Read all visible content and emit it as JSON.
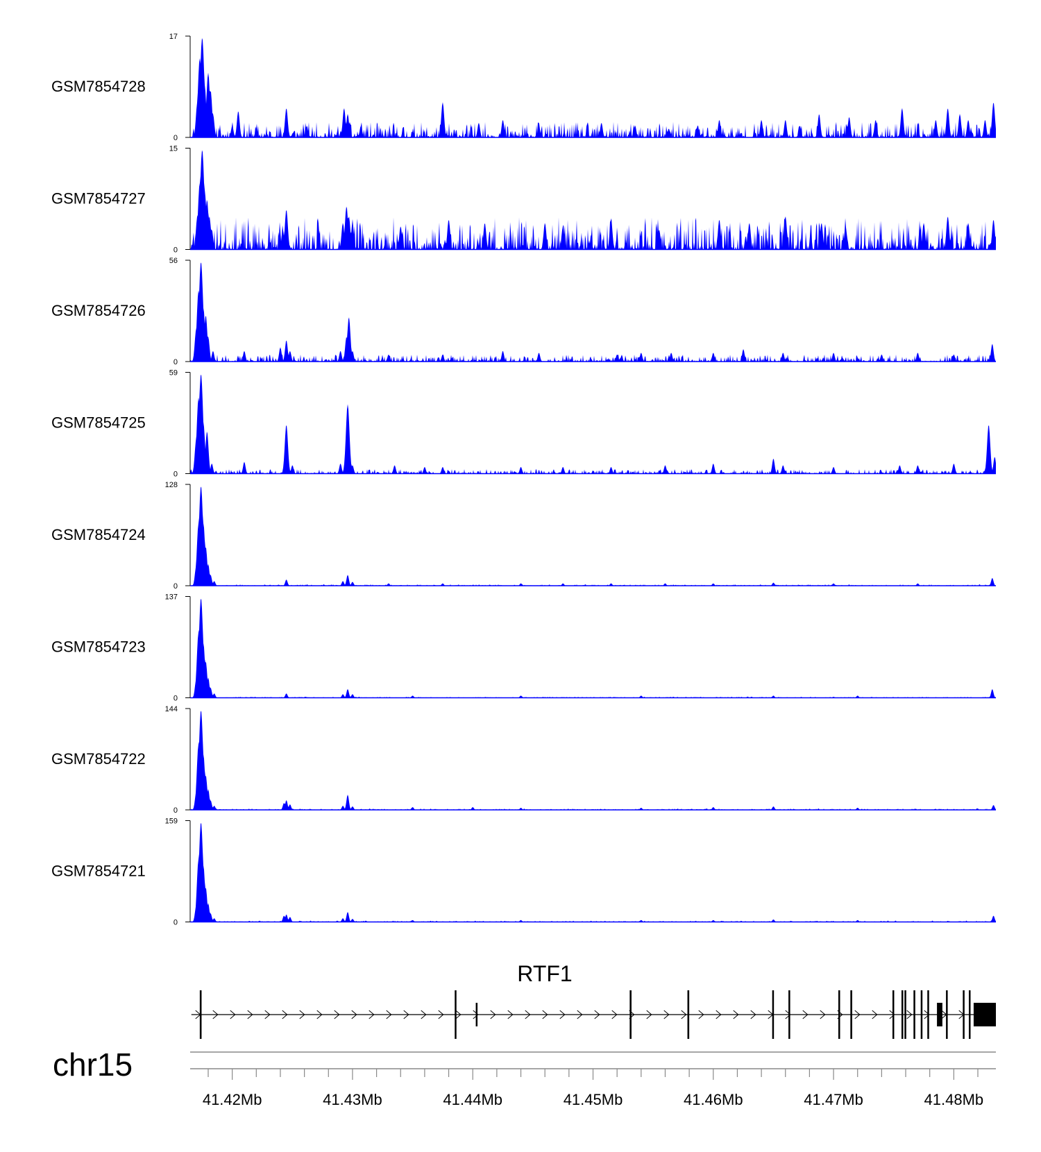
{
  "chart_data": {
    "type": "area",
    "title": "",
    "chromosome": "chr15",
    "xlim": [
      41.4165,
      41.4835
    ],
    "x_unit": "Mb",
    "x_ticks": [
      {
        "value": 41.42,
        "label": "41.42Mb"
      },
      {
        "value": 41.43,
        "label": "41.43Mb"
      },
      {
        "value": 41.44,
        "label": "41.44Mb"
      },
      {
        "value": 41.45,
        "label": "41.45Mb"
      },
      {
        "value": 41.46,
        "label": "41.46Mb"
      },
      {
        "value": 41.47,
        "label": "41.47Mb"
      },
      {
        "value": 41.48,
        "label": "41.48Mb"
      }
    ],
    "fill_color": "#0000ff",
    "series": [
      {
        "name": "GSM7854728",
        "ymin": 0,
        "ymax": 17,
        "ymin_label": "0",
        "ymax_label": "17",
        "peaks": [
          [
            41.4171,
            6
          ],
          [
            41.4173,
            13.5
          ],
          [
            41.4175,
            17
          ],
          [
            41.4177,
            9
          ],
          [
            41.4179,
            5.5
          ],
          [
            41.418,
            11
          ],
          [
            41.4182,
            8
          ],
          [
            41.4184,
            4
          ],
          [
            41.42,
            2
          ],
          [
            41.4205,
            4.5
          ],
          [
            41.422,
            1.5
          ],
          [
            41.4245,
            5
          ],
          [
            41.4262,
            2
          ],
          [
            41.4293,
            5
          ],
          [
            41.4296,
            4
          ],
          [
            41.4307,
            2
          ],
          [
            41.4375,
            6
          ],
          [
            41.4405,
            2.5
          ],
          [
            41.4425,
            3
          ],
          [
            41.4455,
            2
          ],
          [
            41.4507,
            2.5
          ],
          [
            41.4535,
            2
          ],
          [
            41.4563,
            1.5
          ],
          [
            41.4587,
            2
          ],
          [
            41.4605,
            3
          ],
          [
            41.464,
            3
          ],
          [
            41.466,
            3
          ],
          [
            41.4672,
            2
          ],
          [
            41.4688,
            4
          ],
          [
            41.4713,
            3.5
          ],
          [
            41.4735,
            3
          ],
          [
            41.4757,
            5
          ],
          [
            41.4785,
            3
          ],
          [
            41.4795,
            5
          ],
          [
            41.4805,
            4
          ],
          [
            41.4812,
            3
          ],
          [
            41.4826,
            3
          ],
          [
            41.4833,
            6
          ]
        ],
        "noise": 1.2,
        "seed": 11
      },
      {
        "name": "GSM7854727",
        "ymin": 0,
        "ymax": 15,
        "ymin_label": "0",
        "ymax_label": "15",
        "peaks": [
          [
            41.4171,
            5
          ],
          [
            41.4173,
            10
          ],
          [
            41.4175,
            15
          ],
          [
            41.4177,
            9
          ],
          [
            41.4179,
            7.5
          ],
          [
            41.4181,
            5
          ],
          [
            41.4183,
            3
          ],
          [
            41.4245,
            6
          ],
          [
            41.4242,
            3
          ],
          [
            41.4292,
            4
          ],
          [
            41.4295,
            6.5
          ],
          [
            41.4297,
            5
          ],
          [
            41.43,
            4
          ],
          [
            41.434,
            3.5
          ],
          [
            41.438,
            4.5
          ],
          [
            41.441,
            4
          ],
          [
            41.446,
            4
          ],
          [
            41.4475,
            3.5
          ],
          [
            41.4515,
            4.5
          ],
          [
            41.4555,
            3
          ],
          [
            41.4605,
            4.5
          ],
          [
            41.463,
            4
          ],
          [
            41.466,
            5
          ],
          [
            41.469,
            4
          ],
          [
            41.471,
            3.5
          ],
          [
            41.4775,
            4
          ],
          [
            41.4795,
            5
          ],
          [
            41.4812,
            4
          ],
          [
            41.4833,
            4.5
          ]
        ],
        "noise": 2.2,
        "seed": 23
      },
      {
        "name": "GSM7854726",
        "ymin": 0,
        "ymax": 56,
        "ymin_label": "0",
        "ymax_label": "56",
        "peaks": [
          [
            41.417,
            18
          ],
          [
            41.4172,
            40
          ],
          [
            41.4174,
            56
          ],
          [
            41.4176,
            30
          ],
          [
            41.4178,
            26
          ],
          [
            41.418,
            14
          ],
          [
            41.4184,
            6
          ],
          [
            41.421,
            6
          ],
          [
            41.424,
            8
          ],
          [
            41.4245,
            12
          ],
          [
            41.4248,
            6
          ],
          [
            41.429,
            6
          ],
          [
            41.4295,
            14
          ],
          [
            41.4297,
            25
          ],
          [
            41.43,
            6
          ],
          [
            41.433,
            4
          ],
          [
            41.4375,
            4
          ],
          [
            41.4425,
            6
          ],
          [
            41.4455,
            5
          ],
          [
            41.452,
            4
          ],
          [
            41.454,
            5
          ],
          [
            41.4565,
            5
          ],
          [
            41.46,
            5
          ],
          [
            41.4625,
            7
          ],
          [
            41.4658,
            5
          ],
          [
            41.47,
            5
          ],
          [
            41.474,
            4
          ],
          [
            41.477,
            5
          ],
          [
            41.48,
            4
          ],
          [
            41.4832,
            10
          ]
        ],
        "noise": 1.8,
        "seed": 37
      },
      {
        "name": "GSM7854725",
        "ymin": 0,
        "ymax": 59,
        "ymin_label": "0",
        "ymax_label": "59",
        "peaks": [
          [
            41.417,
            20
          ],
          [
            41.4172,
            45
          ],
          [
            41.4174,
            59
          ],
          [
            41.4176,
            30
          ],
          [
            41.4179,
            25
          ],
          [
            41.4183,
            6
          ],
          [
            41.421,
            7
          ],
          [
            41.4245,
            29
          ],
          [
            41.425,
            5
          ],
          [
            41.429,
            6
          ],
          [
            41.4296,
            41
          ],
          [
            41.43,
            5
          ],
          [
            41.4335,
            5
          ],
          [
            41.436,
            4
          ],
          [
            41.4375,
            4
          ],
          [
            41.444,
            4
          ],
          [
            41.4475,
            4
          ],
          [
            41.4515,
            4
          ],
          [
            41.456,
            5
          ],
          [
            41.46,
            6
          ],
          [
            41.465,
            9
          ],
          [
            41.4658,
            5
          ],
          [
            41.47,
            4
          ],
          [
            41.4755,
            5
          ],
          [
            41.477,
            5
          ],
          [
            41.48,
            6
          ],
          [
            41.4829,
            29
          ],
          [
            41.4834,
            10
          ]
        ],
        "noise": 1.2,
        "seed": 41
      },
      {
        "name": "GSM7854724",
        "ymin": 0,
        "ymax": 128,
        "ymin_label": "0",
        "ymax_label": "128",
        "peaks": [
          [
            41.417,
            25
          ],
          [
            41.4172,
            80
          ],
          [
            41.4174,
            128
          ],
          [
            41.4176,
            80
          ],
          [
            41.4178,
            50
          ],
          [
            41.418,
            28
          ],
          [
            41.4182,
            14
          ],
          [
            41.4185,
            6
          ],
          [
            41.4245,
            8
          ],
          [
            41.4292,
            6
          ],
          [
            41.4296,
            14
          ],
          [
            41.43,
            5
          ],
          [
            41.433,
            3
          ],
          [
            41.4375,
            3
          ],
          [
            41.444,
            3
          ],
          [
            41.4475,
            3
          ],
          [
            41.4515,
            3
          ],
          [
            41.456,
            3
          ],
          [
            41.46,
            3
          ],
          [
            41.465,
            4
          ],
          [
            41.47,
            3
          ],
          [
            41.477,
            3
          ],
          [
            41.4832,
            10
          ]
        ],
        "noise": 0.8,
        "seed": 53
      },
      {
        "name": "GSM7854723",
        "ymin": 0,
        "ymax": 137,
        "ymin_label": "0",
        "ymax_label": "137",
        "peaks": [
          [
            41.417,
            25
          ],
          [
            41.4172,
            90
          ],
          [
            41.4174,
            137
          ],
          [
            41.4176,
            75
          ],
          [
            41.4178,
            50
          ],
          [
            41.418,
            28
          ],
          [
            41.4182,
            14
          ],
          [
            41.4185,
            6
          ],
          [
            41.4245,
            6
          ],
          [
            41.4292,
            5
          ],
          [
            41.4296,
            12
          ],
          [
            41.43,
            5
          ],
          [
            41.435,
            3
          ],
          [
            41.444,
            3
          ],
          [
            41.454,
            3
          ],
          [
            41.465,
            3
          ],
          [
            41.472,
            3
          ],
          [
            41.4832,
            12
          ]
        ],
        "noise": 0.7,
        "seed": 67
      },
      {
        "name": "GSM7854722",
        "ymin": 0,
        "ymax": 144,
        "ymin_label": "0",
        "ymax_label": "144",
        "peaks": [
          [
            41.417,
            25
          ],
          [
            41.4172,
            95
          ],
          [
            41.4174,
            144
          ],
          [
            41.4176,
            80
          ],
          [
            41.4178,
            50
          ],
          [
            41.418,
            30
          ],
          [
            41.4182,
            14
          ],
          [
            41.4185,
            6
          ],
          [
            41.4243,
            10
          ],
          [
            41.4245,
            14
          ],
          [
            41.4248,
            8
          ],
          [
            41.4292,
            6
          ],
          [
            41.4296,
            22
          ],
          [
            41.43,
            5
          ],
          [
            41.435,
            4
          ],
          [
            41.44,
            4
          ],
          [
            41.444,
            3
          ],
          [
            41.454,
            3
          ],
          [
            41.46,
            4
          ],
          [
            41.465,
            5
          ],
          [
            41.472,
            3
          ],
          [
            41.4833,
            7
          ]
        ],
        "noise": 0.9,
        "seed": 79
      },
      {
        "name": "GSM7854721",
        "ymin": 0,
        "ymax": 159,
        "ymin_label": "0",
        "ymax_label": "159",
        "peaks": [
          [
            41.417,
            25
          ],
          [
            41.4172,
            100
          ],
          [
            41.4174,
            159
          ],
          [
            41.4176,
            90
          ],
          [
            41.4178,
            55
          ],
          [
            41.418,
            30
          ],
          [
            41.4182,
            14
          ],
          [
            41.4185,
            6
          ],
          [
            41.4243,
            10
          ],
          [
            41.4245,
            12
          ],
          [
            41.4248,
            8
          ],
          [
            41.4292,
            6
          ],
          [
            41.4296,
            16
          ],
          [
            41.43,
            5
          ],
          [
            41.435,
            3
          ],
          [
            41.444,
            3
          ],
          [
            41.454,
            3
          ],
          [
            41.46,
            3
          ],
          [
            41.465,
            4
          ],
          [
            41.472,
            3
          ],
          [
            41.4833,
            10
          ]
        ],
        "noise": 0.9,
        "seed": 97
      }
    ],
    "gene": {
      "name": "RTF1",
      "strand": "+",
      "start": 41.4166,
      "end": 41.4835,
      "exons": [
        [
          41.4173,
          41.41745
        ],
        [
          41.4385,
          41.43862
        ],
        [
          41.44025,
          41.44032
        ],
        [
          41.45305,
          41.4532
        ],
        [
          41.45785,
          41.458
        ],
        [
          41.4649,
          41.46502
        ],
        [
          41.46625,
          41.46637
        ],
        [
          41.4704,
          41.47052
        ],
        [
          41.4714,
          41.47155
        ],
        [
          41.4749,
          41.475
        ],
        [
          41.47565,
          41.47572
        ],
        [
          41.4759,
          41.47602
        ],
        [
          41.47665,
          41.47675
        ],
        [
          41.47725,
          41.47737
        ],
        [
          41.4778,
          41.4779
        ],
        [
          41.4786,
          41.47905
        ],
        [
          41.47935,
          41.47945
        ],
        [
          41.48075,
          41.48085
        ],
        [
          41.48125,
          41.48135
        ],
        [
          41.48165,
          41.4835
        ]
      ]
    }
  }
}
